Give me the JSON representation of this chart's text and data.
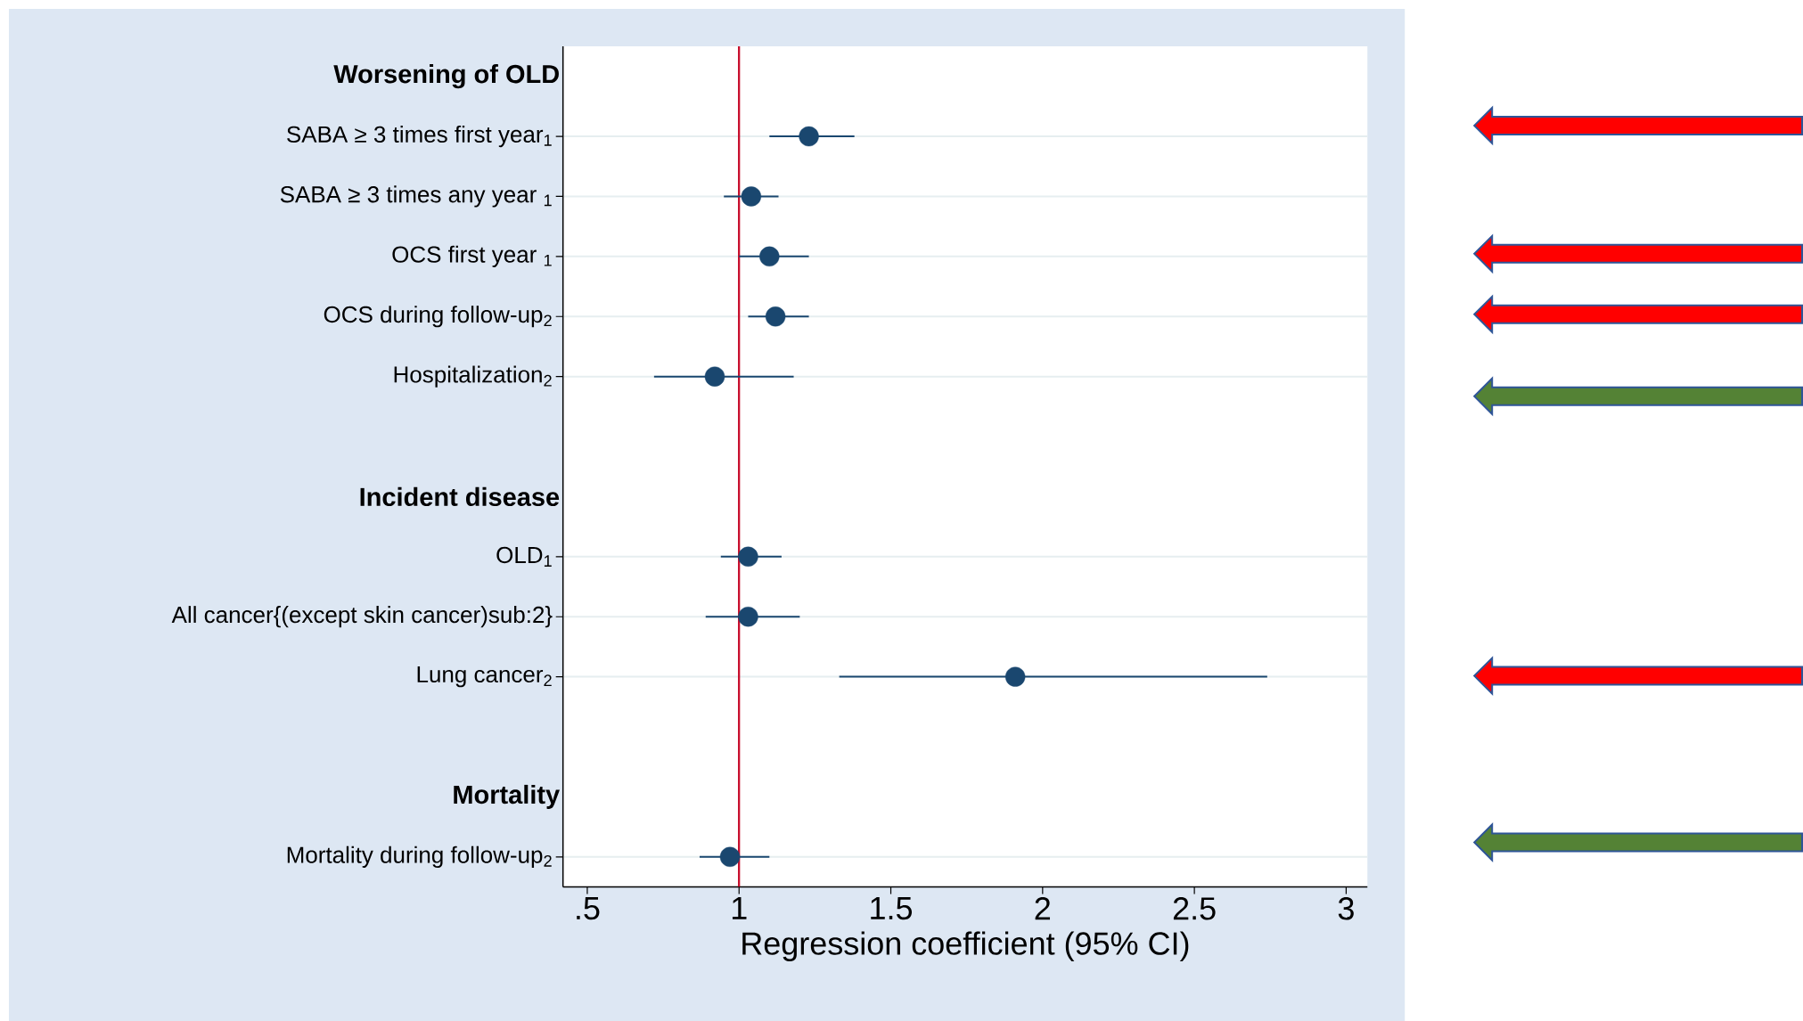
{
  "chart_data": {
    "type": "scatter",
    "orientation": "horizontal",
    "categories": [
      "Worsening of OLD",
      "SABA ≥ 3 times first year$_{1}$",
      "SABA ≥ 3 times any year $_{1}$",
      "OCS first year $_{1}$",
      "OCS during follow-up$_{2}$",
      "Hospitalization$_{2}$",
      null,
      "Incident disease",
      "OLD$_{1}$",
      "All cancer{(except skin cancer)sub:2}",
      "Lung cancer$_{2}$",
      null,
      "Mortality",
      "Mortality during follow-up$_{2}$"
    ],
    "values": [
      null,
      1.23,
      1.04,
      1.1,
      1.12,
      0.92,
      null,
      null,
      1.03,
      1.03,
      1.91,
      null,
      null,
      0.97
    ],
    "errors": [
      null,
      [
        1.1,
        1.38
      ],
      [
        0.95,
        1.13
      ],
      [
        1.0,
        1.23
      ],
      [
        1.03,
        1.23
      ],
      [
        0.72,
        1.18
      ],
      null,
      null,
      [
        0.94,
        1.14
      ],
      [
        0.89,
        1.2
      ],
      [
        1.33,
        2.74
      ],
      null,
      null,
      [
        0.87,
        1.1
      ]
    ],
    "color": "#1a476f",
    "grid": "y",
    "xlabel": "Regression coefficient (95% CI)",
    "xlim": [
      0.42,
      3.07
    ],
    "xticks": [
      {
        "value": 0.5,
        "label": ".5"
      },
      1,
      1.5,
      2,
      2.5,
      3
    ],
    "ref_lines": [
      {
        "axis": "x",
        "value": 1,
        "color": "#c8102e"
      }
    ]
  }
}
